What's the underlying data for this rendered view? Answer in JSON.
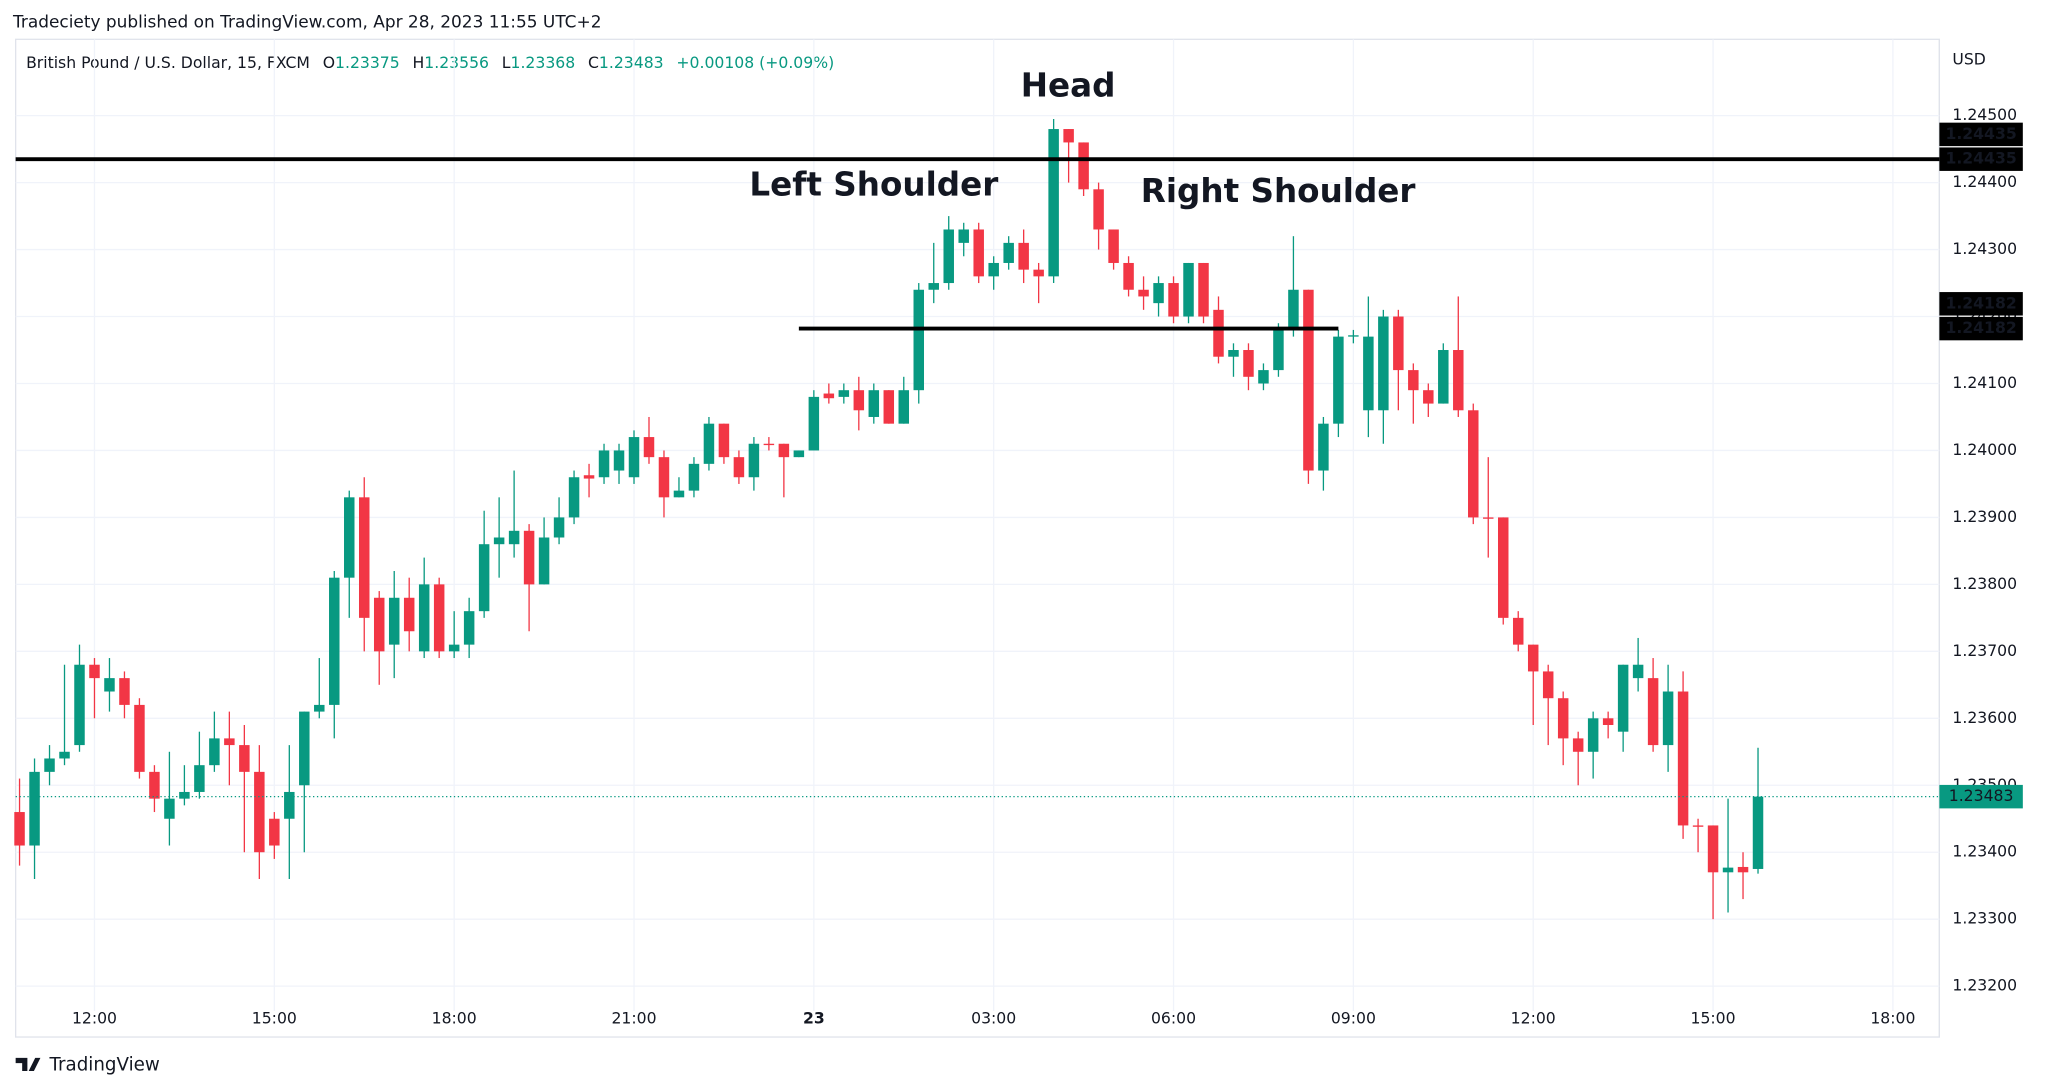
{
  "header": "Tradeciety published on TradingView.com, Apr 28, 2023 11:55 UTC+2",
  "footer": "TradingView",
  "chart_data": {
    "type": "candlestick",
    "symbol": "British Pound / U.S. Dollar, 15, FXCM",
    "ohlc_letters": [
      "O",
      "H",
      "L",
      "C"
    ],
    "change": "+0.00108 (+0.09%)",
    "currency": "USD",
    "colors": {
      "up": "#089981",
      "down": "#f23645"
    },
    "grid": true,
    "open": [
      1.2346,
      1.2341,
      1.2352,
      1.2354,
      1.2356,
      1.2368,
      1.2364,
      1.2366,
      1.2362,
      1.2352,
      1.2345,
      1.2348,
      1.2349,
      1.2353,
      1.2357,
      1.2356,
      1.2352,
      1.2345,
      1.2345,
      1.235,
      1.2361,
      1.2362,
      1.2381,
      1.2393,
      1.2378,
      1.2371,
      1.2378,
      1.237,
      1.238,
      1.237,
      1.2371,
      1.2376,
      1.2386,
      1.2386,
      1.2388,
      1.238,
      1.2387,
      1.239,
      1.23963,
      1.2396,
      1.2397,
      1.2396,
      1.2402,
      1.2399,
      1.2393,
      1.2394,
      1.2398,
      1.2404,
      1.2399,
      1.2396,
      1.2401,
      1.2401,
      1.2399,
      1.24,
      1.24085,
      1.2408,
      1.2409,
      1.2405,
      1.2409,
      1.2404,
      1.2409,
      1.2424,
      1.2425,
      1.2431,
      1.2433,
      1.2426,
      1.2428,
      1.2431,
      1.2427,
      1.2426,
      1.2448,
      1.2446,
      1.2439,
      1.2433,
      1.2428,
      1.2424,
      1.2422,
      1.2425,
      1.242,
      1.2428,
      1.2421,
      1.2414,
      1.2415,
      1.241,
      1.2412,
      1.2418,
      1.2424,
      1.2397,
      1.2404,
      1.2417,
      1.2406,
      1.2406,
      1.242,
      1.2412,
      1.2409,
      1.2407,
      1.2415,
      1.2406,
      1.239,
      1.239,
      1.2375,
      1.2371,
      1.2367,
      1.2363,
      1.2357,
      1.2355,
      1.236,
      1.2358,
      1.2366,
      1.2366,
      1.2356,
      1.2364,
      1.2344,
      1.2344,
      1.2337,
      1.23378,
      1.23375
    ],
    "high": [
      1.2351,
      1.2354,
      1.2356,
      1.2368,
      1.2371,
      1.2369,
      1.2369,
      1.2367,
      1.2363,
      1.2353,
      1.2355,
      1.2353,
      1.2358,
      1.2361,
      1.2361,
      1.2359,
      1.2356,
      1.2346,
      1.2356,
      1.2361,
      1.2369,
      1.2382,
      1.2394,
      1.2396,
      1.2379,
      1.2382,
      1.2381,
      1.2384,
      1.2381,
      1.2376,
      1.2378,
      1.2391,
      1.2393,
      1.2397,
      1.2389,
      1.239,
      1.2393,
      1.2397,
      1.2398,
      1.2401,
      1.2401,
      1.2403,
      1.2405,
      1.24,
      1.2396,
      1.2399,
      1.2405,
      1.2404,
      1.24,
      1.2402,
      1.2402,
      1.2401,
      1.24,
      1.2409,
      1.241,
      1.241,
      1.2411,
      1.241,
      1.2409,
      1.2411,
      1.2425,
      1.2431,
      1.2435,
      1.2434,
      1.2434,
      1.2429,
      1.2432,
      1.2433,
      1.2428,
      1.24495,
      1.2448,
      1.2446,
      1.244,
      1.2433,
      1.2429,
      1.2426,
      1.2426,
      1.2426,
      1.2428,
      1.2428,
      1.2423,
      1.2416,
      1.2416,
      1.2413,
      1.2419,
      1.2432,
      1.2424,
      1.2405,
      1.2418,
      1.2418,
      1.2423,
      1.2421,
      1.2421,
      1.2413,
      1.241,
      1.2416,
      1.2423,
      1.2407,
      1.2399,
      1.239,
      1.2376,
      1.2371,
      1.2368,
      1.2364,
      1.2358,
      1.2361,
      1.2361,
      1.2368,
      1.2372,
      1.2369,
      1.2368,
      1.2367,
      1.2345,
      1.2344,
      1.2348,
      1.234,
      1.23556
    ],
    "low": [
      1.2338,
      1.2336,
      1.235,
      1.2353,
      1.2355,
      1.236,
      1.2361,
      1.236,
      1.2351,
      1.2346,
      1.2341,
      1.2347,
      1.2348,
      1.2352,
      1.235,
      1.234,
      1.2336,
      1.2339,
      1.2336,
      1.234,
      1.236,
      1.2357,
      1.2375,
      1.237,
      1.2365,
      1.2366,
      1.237,
      1.2369,
      1.2369,
      1.2369,
      1.2369,
      1.2375,
      1.2381,
      1.2384,
      1.2373,
      1.238,
      1.2386,
      1.2389,
      1.2393,
      1.2395,
      1.2395,
      1.2395,
      1.2398,
      1.239,
      1.2393,
      1.2393,
      1.2397,
      1.2398,
      1.2395,
      1.2394,
      1.24,
      1.2393,
      1.2399,
      1.24,
      1.2407,
      1.2407,
      1.2403,
      1.2404,
      1.2404,
      1.2404,
      1.2407,
      1.2422,
      1.2424,
      1.2429,
      1.2425,
      1.2424,
      1.2427,
      1.2425,
      1.2422,
      1.2425,
      1.244,
      1.2438,
      1.243,
      1.2427,
      1.2423,
      1.2421,
      1.242,
      1.2419,
      1.2419,
      1.2419,
      1.2413,
      1.2411,
      1.2409,
      1.2409,
      1.2411,
      1.2417,
      1.2395,
      1.2394,
      1.2402,
      1.2416,
      1.2402,
      1.2401,
      1.2406,
      1.2404,
      1.2405,
      1.2407,
      1.2405,
      1.2389,
      1.2384,
      1.2374,
      1.237,
      1.2359,
      1.2356,
      1.2353,
      1.235,
      1.2351,
      1.2357,
      1.2355,
      1.2364,
      1.2355,
      1.2352,
      1.2342,
      1.234,
      1.233,
      1.2331,
      1.2333,
      1.23368
    ],
    "close": [
      1.2341,
      1.2352,
      1.2354,
      1.2355,
      1.2368,
      1.2366,
      1.2366,
      1.2362,
      1.2352,
      1.2348,
      1.2348,
      1.2349,
      1.2353,
      1.2357,
      1.2356,
      1.2352,
      1.234,
      1.2341,
      1.2349,
      1.2361,
      1.2362,
      1.2381,
      1.2393,
      1.2375,
      1.237,
      1.2378,
      1.2373,
      1.238,
      1.237,
      1.2371,
      1.2376,
      1.2386,
      1.2387,
      1.2388,
      1.238,
      1.2387,
      1.239,
      1.2396,
      1.23958,
      1.24,
      1.24,
      1.2402,
      1.2399,
      1.2393,
      1.2394,
      1.2398,
      1.2404,
      1.2399,
      1.2396,
      1.2401,
      1.24008,
      1.2399,
      1.24,
      1.2408,
      1.24078,
      1.2409,
      1.2406,
      1.2409,
      1.2404,
      1.2409,
      1.2424,
      1.2425,
      1.2433,
      1.2433,
      1.2426,
      1.2428,
      1.2431,
      1.2427,
      1.2426,
      1.2448,
      1.2446,
      1.2439,
      1.2433,
      1.2428,
      1.2424,
      1.2423,
      1.2425,
      1.242,
      1.2428,
      1.242,
      1.2414,
      1.2415,
      1.2411,
      1.2412,
      1.2418,
      1.2424,
      1.2397,
      1.2404,
      1.2417,
      1.24172,
      1.2417,
      1.242,
      1.2412,
      1.2409,
      1.2407,
      1.2415,
      1.2406,
      1.239,
      1.23898,
      1.2375,
      1.2371,
      1.2367,
      1.2363,
      1.2357,
      1.2355,
      1.236,
      1.2359,
      1.2368,
      1.2368,
      1.2356,
      1.2364,
      1.2344,
      1.23438,
      1.2337,
      1.23377,
      1.2337,
      1.23483
    ],
    "xlim": [
      -0.26,
      128.1
    ],
    "ylim": [
      1.23124,
      1.24614
    ],
    "xticks": [
      {
        "value": 5,
        "label": "12:00"
      },
      {
        "value": 17,
        "label": "15:00"
      },
      {
        "value": 29,
        "label": "18:00"
      },
      {
        "value": 41,
        "label": "21:00"
      },
      {
        "value": 53,
        "label": "23"
      },
      {
        "value": 65,
        "label": "03:00"
      },
      {
        "value": 77,
        "label": "06:00"
      },
      {
        "value": 89,
        "label": "09:00"
      },
      {
        "value": 101,
        "label": "12:00"
      },
      {
        "value": 113,
        "label": "15:00"
      },
      {
        "value": 125,
        "label": "18:00"
      }
    ],
    "yticks": [
      {
        "value": 1.232,
        "label": "1.23200"
      },
      {
        "value": 1.233,
        "label": "1.23300"
      },
      {
        "value": 1.234,
        "label": "1.23400"
      },
      {
        "value": 1.235,
        "label": "1.23500"
      },
      {
        "value": 1.236,
        "label": "1.23600"
      },
      {
        "value": 1.237,
        "label": "1.23700"
      },
      {
        "value": 1.238,
        "label": "1.23800"
      },
      {
        "value": 1.239,
        "label": "1.23900"
      },
      {
        "value": 1.24,
        "label": "1.24000"
      },
      {
        "value": 1.241,
        "label": "1.24100"
      },
      {
        "value": 1.242,
        "label": "1.24200"
      },
      {
        "value": 1.243,
        "label": "1.24300"
      },
      {
        "value": 1.244,
        "label": "1.24400"
      },
      {
        "value": 1.245,
        "label": "1.24500"
      }
    ],
    "levels": [
      {
        "value": 1.24435,
        "label": "1.24435"
      },
      {
        "value": 1.24182,
        "label": "1.24182",
        "x": [
          52,
          88
        ]
      }
    ],
    "annotations": [
      {
        "text": "Head"
      },
      {
        "text": "Left Shoulder"
      },
      {
        "text": "Right Shoulder"
      }
    ]
  }
}
